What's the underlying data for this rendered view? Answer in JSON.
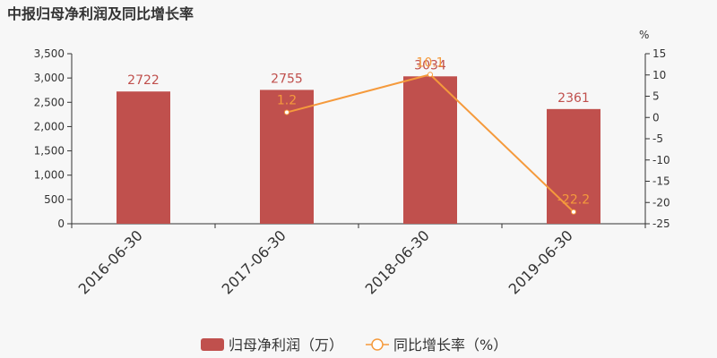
{
  "chart_data": {
    "type": "bar",
    "title": "中报归母净利润及同比增长率",
    "categories": [
      "2016-06-30",
      "2017-06-30",
      "2018-06-30",
      "2019-06-30"
    ],
    "y_left": {
      "min": 0,
      "max": 3500,
      "ticks": [
        "0",
        "500",
        "1,000",
        "1,500",
        "2,000",
        "2,500",
        "3,000",
        "3,500"
      ],
      "tick_values": [
        0,
        500,
        1000,
        1500,
        2000,
        2500,
        3000,
        3500
      ]
    },
    "y_right": {
      "label": "%",
      "min": -25,
      "max": 15,
      "ticks": [
        "-25",
        "-20",
        "-15",
        "-10",
        "-5",
        "0",
        "5",
        "10",
        "15"
      ],
      "tick_values": [
        -25,
        -20,
        -15,
        -10,
        -5,
        0,
        5,
        10,
        15
      ]
    },
    "series": [
      {
        "name": "归母净利润（万）",
        "type": "bar",
        "axis": "left",
        "color": "#c0504d",
        "values": [
          2722,
          2755,
          3034,
          2361
        ],
        "labels": [
          "2722",
          "2755",
          "3034",
          "2361"
        ]
      },
      {
        "name": "同比增长率（%）",
        "type": "line",
        "axis": "right",
        "color": "#f59a3c",
        "values": [
          null,
          1.2,
          10.1,
          -22.2
        ],
        "labels": [
          "",
          "1.2",
          "10.1",
          "-22.2"
        ]
      }
    ],
    "grid": false,
    "legend_position": "bottom"
  }
}
